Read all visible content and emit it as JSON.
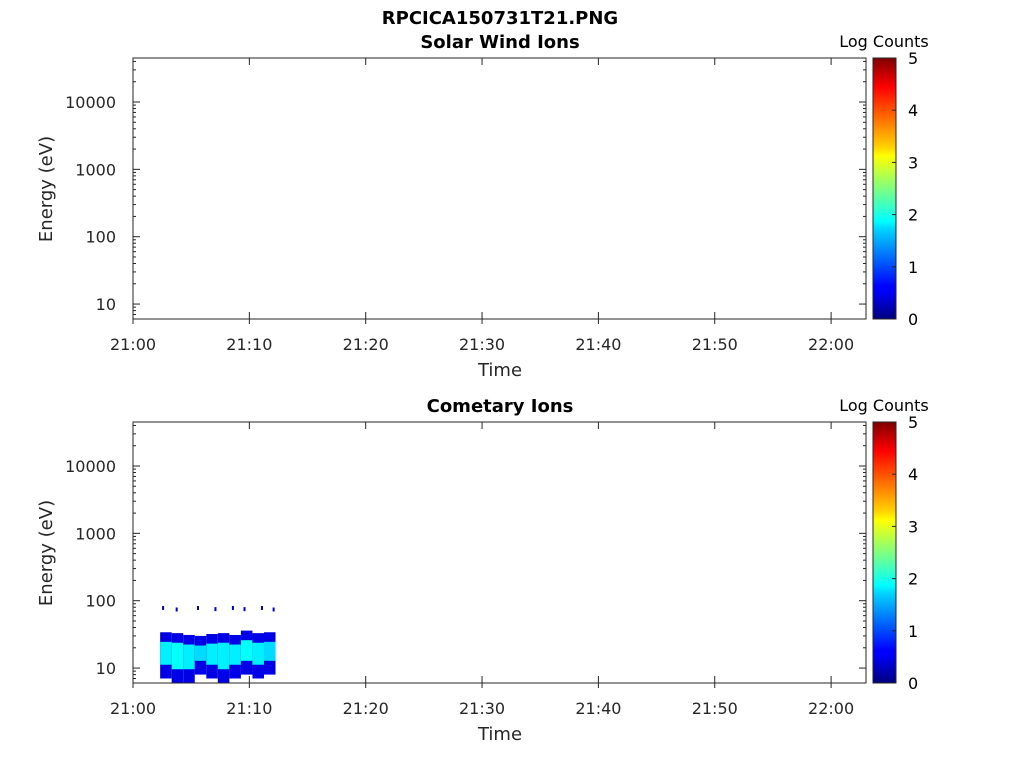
{
  "figure": {
    "title": "RPCICA150731T21.PNG"
  },
  "chart_data": [
    {
      "type": "heatmap",
      "title": "Solar Wind Ions",
      "xlabel": "Time",
      "ylabel": "Energy (eV)",
      "x_ticks": [
        "21:00",
        "21:10",
        "21:20",
        "21:30",
        "21:40",
        "21:50",
        "22:00"
      ],
      "y_ticks": [
        {
          "label": "10",
          "value": 10
        },
        {
          "label": "100",
          "value": 100
        },
        {
          "label": "1000",
          "value": 1000
        },
        {
          "label": "10000",
          "value": 10000
        }
      ],
      "y_scale": "log",
      "ylim": [
        6,
        45000
      ],
      "xlim": [
        "21:00",
        "22:03"
      ],
      "colorbar": {
        "label": "Log Counts",
        "ticks": [
          "0",
          "1",
          "2",
          "3",
          "4",
          "5"
        ],
        "range": [
          0,
          5
        ],
        "colormap": "jet"
      },
      "cells": []
    },
    {
      "type": "heatmap",
      "title": "Cometary Ions",
      "xlabel": "Time",
      "ylabel": "Energy (eV)",
      "x_ticks": [
        "21:00",
        "21:10",
        "21:20",
        "21:30",
        "21:40",
        "21:50",
        "22:00"
      ],
      "y_ticks": [
        {
          "label": "10",
          "value": 10
        },
        {
          "label": "100",
          "value": 100
        },
        {
          "label": "1000",
          "value": 1000
        },
        {
          "label": "10000",
          "value": 10000
        }
      ],
      "y_scale": "log",
      "ylim": [
        6,
        45000
      ],
      "xlim": [
        "21:00",
        "22:03"
      ],
      "colorbar": {
        "label": "Log Counts",
        "ticks": [
          "0",
          "1",
          "2",
          "3",
          "4",
          "5"
        ],
        "range": [
          0,
          5
        ],
        "colormap": "jet"
      },
      "data_time_range": [
        "21:02:20",
        "21:12:15"
      ],
      "cells": [
        {
          "t": "21:03",
          "e_lo": 7,
          "e_hi": 34,
          "log_counts": 1.8
        },
        {
          "t": "21:04",
          "e_lo": 6,
          "e_hi": 33,
          "log_counts": 1.9
        },
        {
          "t": "21:05",
          "e_lo": 6,
          "e_hi": 31,
          "log_counts": 1.8
        },
        {
          "t": "21:06",
          "e_lo": 8,
          "e_hi": 30,
          "log_counts": 1.7
        },
        {
          "t": "21:07",
          "e_lo": 7,
          "e_hi": 32,
          "log_counts": 1.8
        },
        {
          "t": "21:08",
          "e_lo": 6,
          "e_hi": 33,
          "log_counts": 1.8
        },
        {
          "t": "21:09",
          "e_lo": 7,
          "e_hi": 31,
          "log_counts": 1.8
        },
        {
          "t": "21:10",
          "e_lo": 8,
          "e_hi": 36,
          "log_counts": 1.9
        },
        {
          "t": "21:11",
          "e_lo": 7,
          "e_hi": 33,
          "log_counts": 1.8
        },
        {
          "t": "21:12",
          "e_lo": 8,
          "e_hi": 34,
          "log_counts": 1.7
        }
      ],
      "sparse_points": [
        {
          "t": "21:02:30",
          "e": 78,
          "log_counts": 0.3
        },
        {
          "t": "21:03:40",
          "e": 74,
          "log_counts": 0.3
        },
        {
          "t": "21:05:30",
          "e": 78,
          "log_counts": 0.3
        },
        {
          "t": "21:07:00",
          "e": 75,
          "log_counts": 0.3
        },
        {
          "t": "21:08:30",
          "e": 78,
          "log_counts": 0.4
        },
        {
          "t": "21:09:30",
          "e": 75,
          "log_counts": 0.3
        },
        {
          "t": "21:11:00",
          "e": 78,
          "log_counts": 0.3
        },
        {
          "t": "21:12:00",
          "e": 74,
          "log_counts": 0.4
        }
      ]
    }
  ]
}
